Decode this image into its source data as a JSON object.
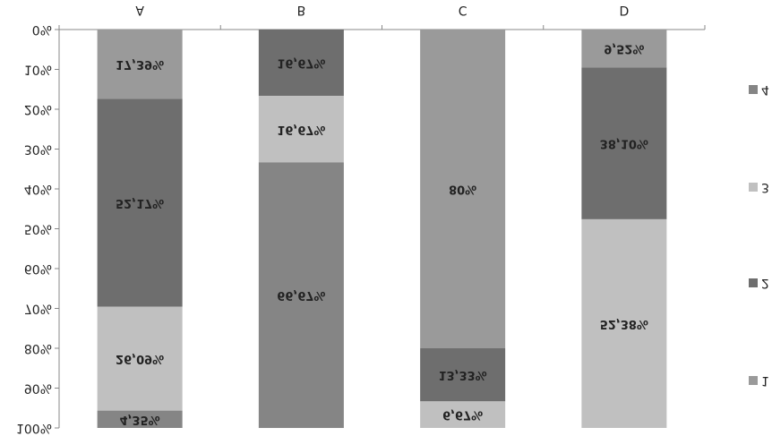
{
  "chart_data": {
    "type": "stacked_bar_percent",
    "categories": [
      "A",
      "B",
      "C",
      "D"
    ],
    "series": [
      {
        "name": "1",
        "color": "#9a9a9a",
        "values": [
          17.39,
          0,
          80,
          9.52
        ],
        "value_labels": [
          "17,39%",
          null,
          "80%",
          "9,52%"
        ]
      },
      {
        "name": "2",
        "color": "#6e6e6e",
        "values": [
          52.17,
          16.67,
          13.33,
          38.1
        ],
        "value_labels": [
          "52,17%",
          "16,67%",
          "13,33%",
          "38,10%"
        ]
      },
      {
        "name": "3",
        "color": "#c0c0c0",
        "values": [
          26.09,
          16.67,
          6.67,
          52.38
        ],
        "value_labels": [
          "26,09%",
          "16,67%",
          "6,67%",
          "52,38%"
        ]
      },
      {
        "name": "4",
        "color": "#858585",
        "values": [
          4.35,
          66.67,
          0,
          0
        ],
        "value_labels": [
          "4,35%",
          "66,67%",
          null,
          null
        ]
      }
    ],
    "ylim": [
      0,
      100
    ],
    "yticks": [
      {
        "value": 0,
        "label": "0%"
      },
      {
        "value": 10,
        "label": "10%"
      },
      {
        "value": 20,
        "label": "20%"
      },
      {
        "value": 30,
        "label": "30%"
      },
      {
        "value": 40,
        "label": "40%"
      },
      {
        "value": 50,
        "label": "50%"
      },
      {
        "value": 60,
        "label": "60%"
      },
      {
        "value": 70,
        "label": "70%"
      },
      {
        "value": 80,
        "label": "80%"
      },
      {
        "value": 90,
        "label": "90%"
      },
      {
        "value": 100,
        "label": "100%"
      }
    ],
    "flipped_vertically": true
  }
}
